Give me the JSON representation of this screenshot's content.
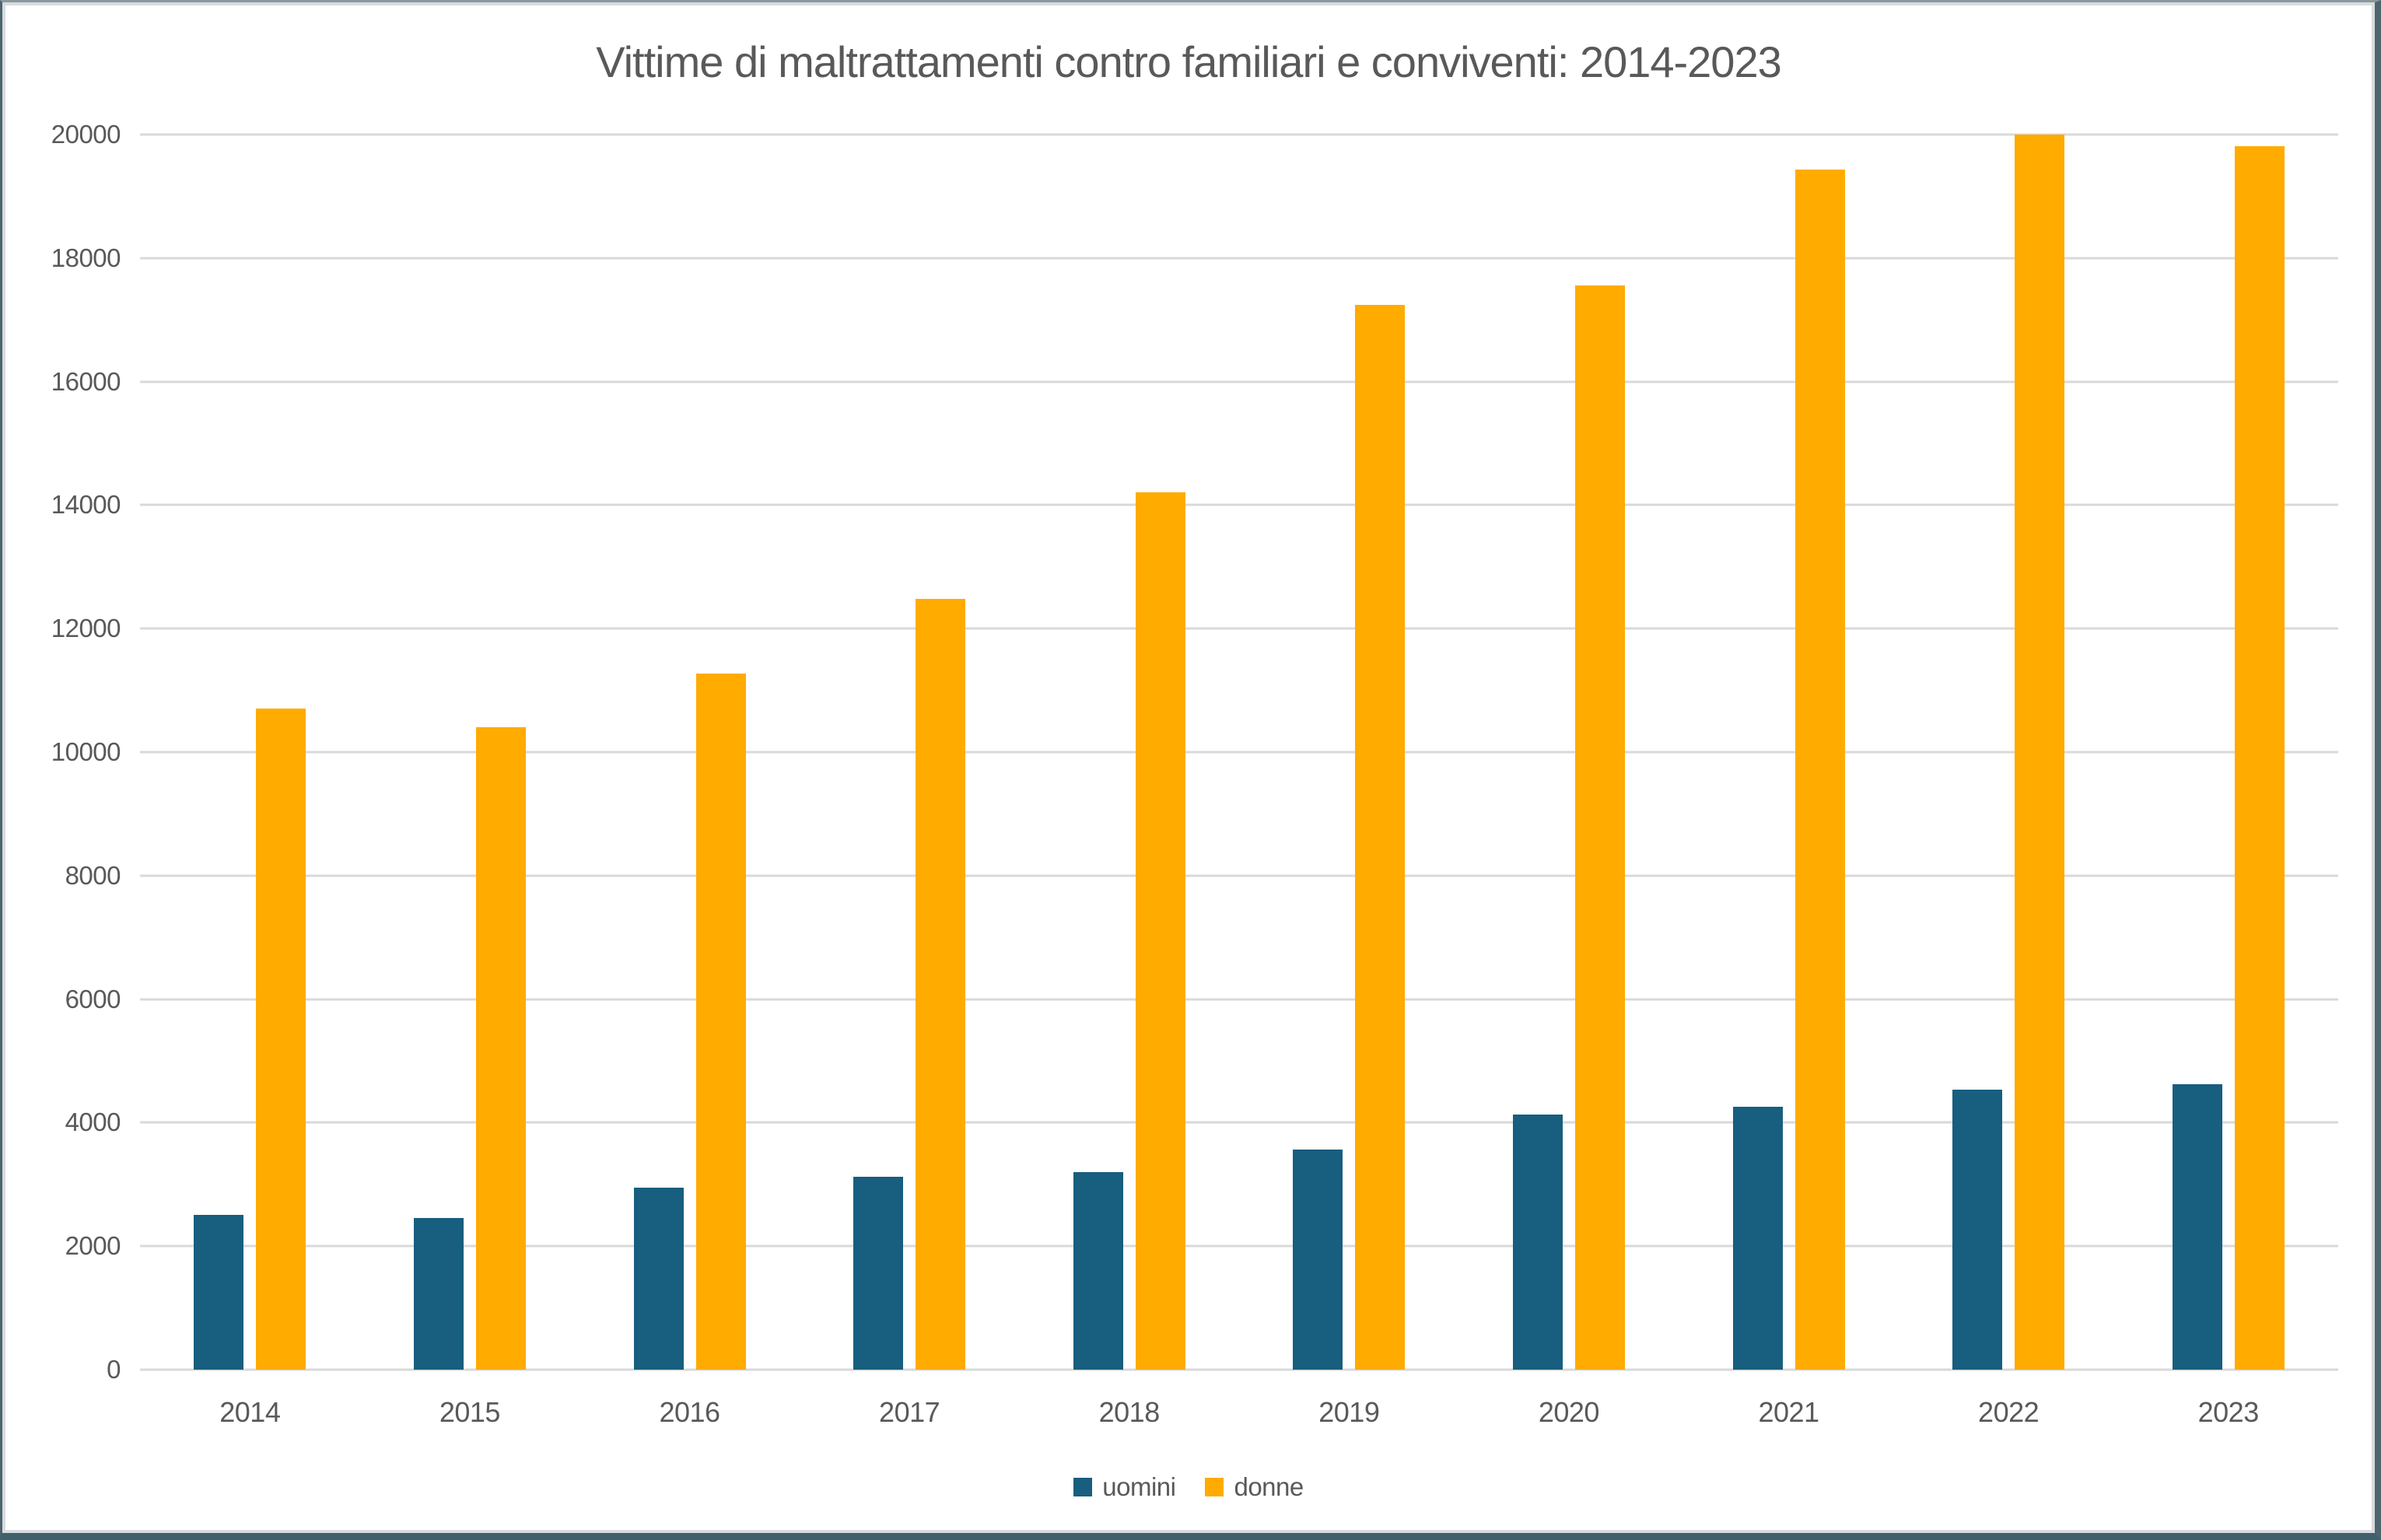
{
  "window": {
    "background": "#FFFFFF",
    "frame_color": "#40606B"
  },
  "chart_data": {
    "type": "bar",
    "title": "Vittime di maltrattamenti contro familiari e conviventi: 2014-2023",
    "categories": [
      "2014",
      "2015",
      "2016",
      "2017",
      "2018",
      "2019",
      "2020",
      "2021",
      "2022",
      "2023"
    ],
    "series": [
      {
        "name": "uomini",
        "color": "#175E7F",
        "values": [
          2510,
          2460,
          2950,
          3120,
          3200,
          3560,
          4130,
          4260,
          4530,
          4620
        ]
      },
      {
        "name": "donne",
        "color": "#FFAB00",
        "values": [
          10700,
          10400,
          11270,
          12480,
          14210,
          17240,
          17560,
          19430,
          20000,
          19810
        ]
      }
    ],
    "ylim": [
      0,
      20000
    ],
    "ytick_step": 2000,
    "grid": true,
    "legend_position": "bottom",
    "legend_labels": [
      "uomini",
      "donne"
    ],
    "colors": {
      "uomini": "#175E7F",
      "donne": "#FFAB00",
      "gridline": "#D9D9D9",
      "axis_line": "#D9D9D9",
      "text": "#595959"
    }
  }
}
